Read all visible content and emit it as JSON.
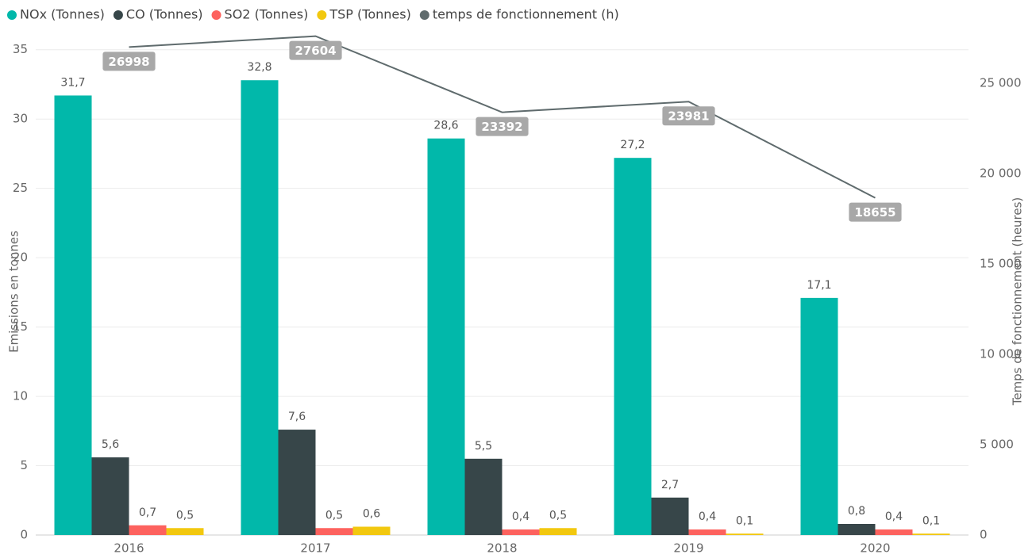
{
  "chart_data": {
    "type": "bar",
    "categories": [
      "2016",
      "2017",
      "2018",
      "2019",
      "2020"
    ],
    "series": [
      {
        "name": "NOx (Tonnes)",
        "color": "#01b8aa",
        "values": [
          31.7,
          32.8,
          28.6,
          27.2,
          17.1
        ],
        "value_labels": [
          "31,7",
          "32,8",
          "28,6",
          "27,2",
          "17,1"
        ]
      },
      {
        "name": "CO (Tonnes)",
        "color": "#374649",
        "values": [
          5.6,
          7.6,
          5.5,
          2.7,
          0.8
        ],
        "value_labels": [
          "5,6",
          "7,6",
          "5,5",
          "2,7",
          "0,8"
        ]
      },
      {
        "name": "SO2 (Tonnes)",
        "color": "#fd625e",
        "values": [
          0.7,
          0.5,
          0.4,
          0.4,
          0.4
        ],
        "value_labels": [
          "0,7",
          "0,5",
          "0,4",
          "0,4",
          "0,4"
        ]
      },
      {
        "name": "TSP (Tonnes)",
        "color": "#f2c80f",
        "values": [
          0.5,
          0.6,
          0.5,
          0.1,
          0.1
        ],
        "value_labels": [
          "0,5",
          "0,6",
          "0,5",
          "0,1",
          "0,1"
        ]
      },
      {
        "name": "temps de fonctionnement (h)",
        "color": "#5f6b6d",
        "type": "line",
        "axis": "y2",
        "values": [
          26998,
          27604,
          23392,
          23981,
          18655
        ]
      }
    ],
    "y_label": "Emissions en tonnes",
    "y2_label": "Temps de fonctionnement (heures)",
    "ylim": [
      0,
      36.3
    ],
    "yticks": [
      0,
      5,
      10,
      15,
      20,
      25,
      30,
      35
    ],
    "y2lim": [
      0,
      27850
    ],
    "y2ticks": [
      0,
      {
        "value": 5000,
        "label": "5 000"
      },
      {
        "value": 10000,
        "label": "10 000"
      },
      {
        "value": 15000,
        "label": "15 000"
      },
      {
        "value": 20000,
        "label": "20 000"
      },
      {
        "value": 25000,
        "label": "25 000"
      }
    ],
    "grid": true,
    "legend": "top-left"
  }
}
